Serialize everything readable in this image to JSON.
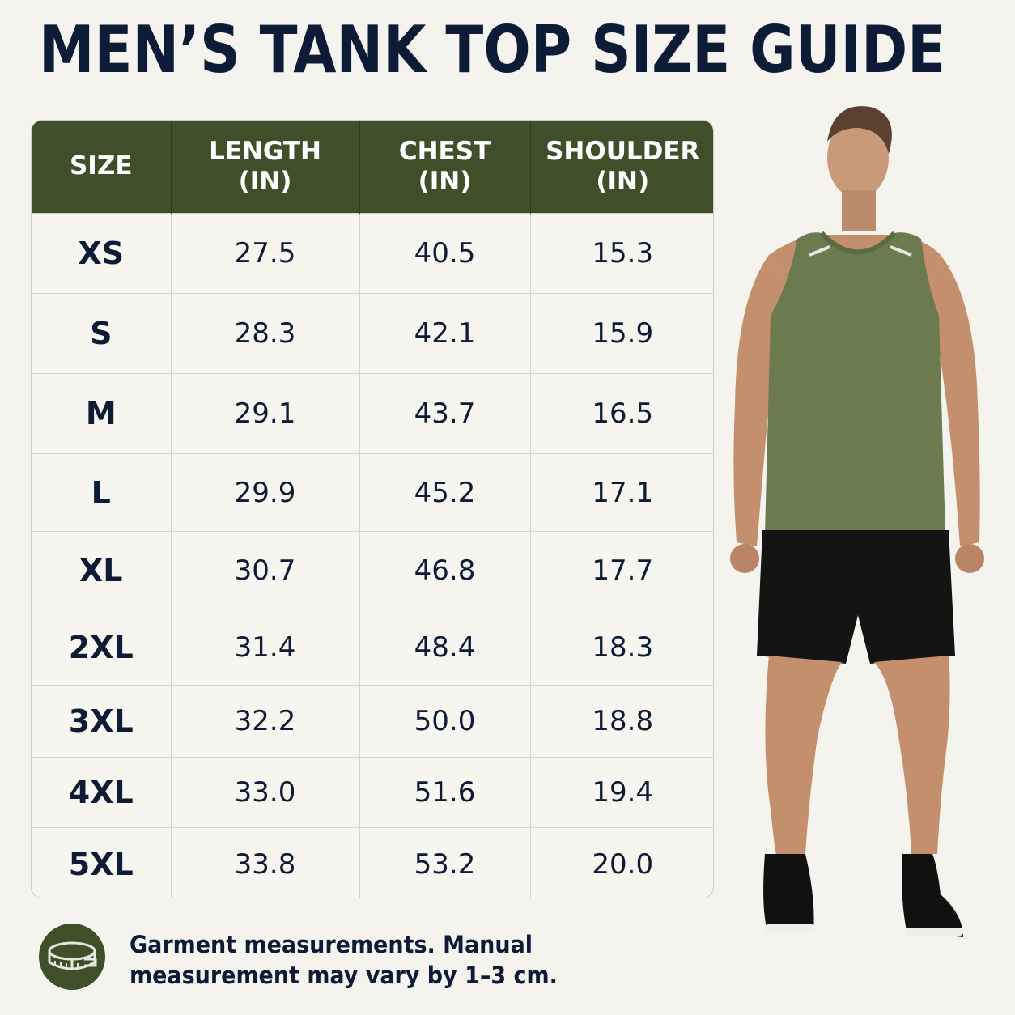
{
  "title": "MEN’S TANK TOP SIZE GUIDE",
  "table": {
    "headers": [
      {
        "line1": "SIZE",
        "line2": ""
      },
      {
        "line1": "LENGTH",
        "line2": "(IN)"
      },
      {
        "line1": "CHEST",
        "line2": "(IN)"
      },
      {
        "line1": "SHOULDER",
        "line2": "(IN)"
      }
    ],
    "rows": [
      {
        "size": "XS",
        "length": "27.5",
        "chest": "40.5",
        "shoulder": "15.3"
      },
      {
        "size": "S",
        "length": "28.3",
        "chest": "42.1",
        "shoulder": "15.9"
      },
      {
        "size": "M",
        "length": "29.1",
        "chest": "43.7",
        "shoulder": "16.5"
      },
      {
        "size": "L",
        "length": "29.9",
        "chest": "45.2",
        "shoulder": "17.1"
      },
      {
        "size": "XL",
        "length": "30.7",
        "chest": "46.8",
        "shoulder": "17.7"
      },
      {
        "size": "2XL",
        "length": "31.4",
        "chest": "48.4",
        "shoulder": "18.3"
      },
      {
        "size": "3XL",
        "length": "32.2",
        "chest": "50.0",
        "shoulder": "18.8"
      },
      {
        "size": "4XL",
        "length": "33.0",
        "chest": "51.6",
        "shoulder": "19.4"
      },
      {
        "size": "5XL",
        "length": "33.8",
        "chest": "53.2",
        "shoulder": "20.0"
      }
    ]
  },
  "note": {
    "icon": "measuring-tape-icon",
    "text": "Garment measurements. Manual measurement may vary by 1–3 cm."
  },
  "colors": {
    "title": "#0d1b36",
    "header_bg": "#3f4f2a",
    "tank_top": "#6b7a4f",
    "shorts": "#141414"
  }
}
